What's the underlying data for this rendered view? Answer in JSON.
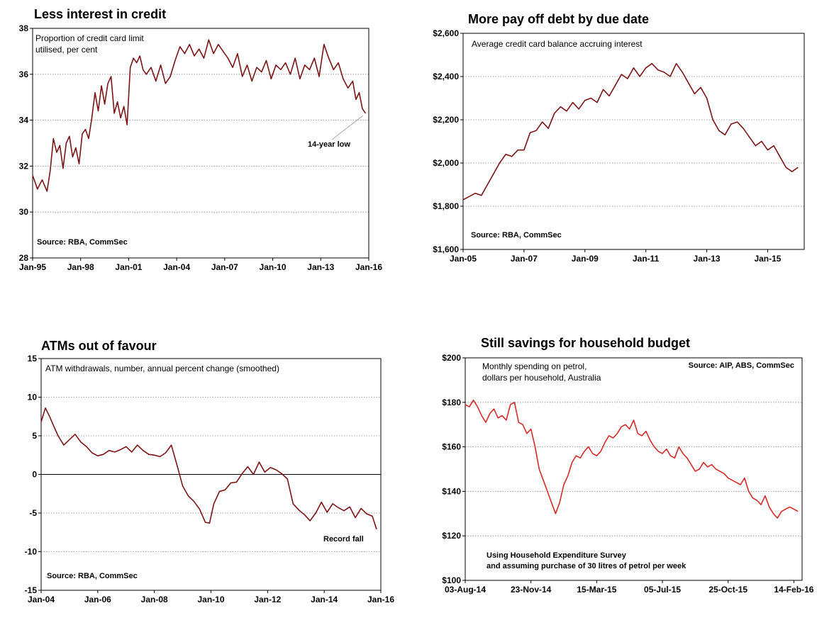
{
  "chart_data": [
    {
      "type": "line",
      "title": "Less interest in credit",
      "note_lines": [
        "Proportion of credit card limit",
        "utilised, per cent"
      ],
      "source": "Source: RBA, CommSec",
      "annotation": "14-year low",
      "ylim": [
        28,
        38
      ],
      "y_ticks": [
        28,
        30,
        32,
        34,
        36,
        38
      ],
      "y_tick_labels": [
        "28",
        "30",
        "32",
        "34",
        "36",
        "38"
      ],
      "xlim": [
        1995.0,
        2016.0
      ],
      "x_ticks": [
        1995,
        1998,
        2001,
        2004,
        2007,
        2010,
        2013,
        2016
      ],
      "x_tick_labels": [
        "Jan-95",
        "Jan-98",
        "Jan-01",
        "Jan-04",
        "Jan-07",
        "Jan-10",
        "Jan-13",
        "Jan-16"
      ],
      "grid": true,
      "color": "#7b1416",
      "series": [
        {
          "x": [
            1995.0,
            1995.3,
            1995.6,
            1995.9,
            1996.1,
            1996.3,
            1996.5,
            1996.7,
            1996.9,
            1997.1,
            1997.3,
            1997.5,
            1997.7,
            1997.9,
            1998.1,
            1998.3,
            1998.5,
            1998.7,
            1998.9,
            1999.1,
            1999.3,
            1999.5,
            1999.7,
            1999.9,
            2000.1,
            2000.3,
            2000.5,
            2000.7,
            2000.9,
            2001.1,
            2001.3,
            2001.5,
            2001.7,
            2001.9,
            2002.1,
            2002.4,
            2002.7,
            2003.0,
            2003.3,
            2003.6,
            2003.9,
            2004.2,
            2004.5,
            2004.8,
            2005.1,
            2005.4,
            2005.7,
            2006.0,
            2006.3,
            2006.6,
            2006.9,
            2007.2,
            2007.5,
            2007.8,
            2008.1,
            2008.4,
            2008.7,
            2009.0,
            2009.3,
            2009.6,
            2009.9,
            2010.2,
            2010.5,
            2010.8,
            2011.1,
            2011.4,
            2011.7,
            2012.0,
            2012.3,
            2012.6,
            2012.9,
            2013.2,
            2013.5,
            2013.8,
            2014.1,
            2014.4,
            2014.7,
            2015.0,
            2015.2,
            2015.4,
            2015.6,
            2015.8
          ],
          "y": [
            31.6,
            31.0,
            31.4,
            30.9,
            31.8,
            33.2,
            32.6,
            32.9,
            31.9,
            33.0,
            33.3,
            32.4,
            32.8,
            32.1,
            33.4,
            33.6,
            33.2,
            34.1,
            35.2,
            34.4,
            35.5,
            34.7,
            35.6,
            35.9,
            34.3,
            34.8,
            34.1,
            34.6,
            33.8,
            36.3,
            36.7,
            36.5,
            36.8,
            36.2,
            36.0,
            36.3,
            35.7,
            36.4,
            35.6,
            35.9,
            36.6,
            37.2,
            36.9,
            37.3,
            36.8,
            37.1,
            36.7,
            37.5,
            36.9,
            37.3,
            37.0,
            36.7,
            36.3,
            36.9,
            35.9,
            36.4,
            35.7,
            36.3,
            36.1,
            36.6,
            35.8,
            36.4,
            36.2,
            36.5,
            36.0,
            36.7,
            35.8,
            36.4,
            36.2,
            36.7,
            35.9,
            37.3,
            36.7,
            36.2,
            36.5,
            35.8,
            35.4,
            35.7,
            34.9,
            35.2,
            34.5,
            34.3
          ]
        }
      ]
    },
    {
      "type": "line",
      "title": "More pay off debt by due date",
      "note_lines": [
        "Average credit card balance accruing interest"
      ],
      "source": "Source: RBA, CommSec",
      "ylim": [
        1600,
        2600
      ],
      "y_ticks": [
        1600,
        1800,
        2000,
        2200,
        2400,
        2600
      ],
      "y_tick_labels": [
        "$1,600",
        "$1,800",
        "$2,000",
        "$2,200",
        "$2,400",
        "$2,600"
      ],
      "xlim": [
        2005.0,
        2016.2
      ],
      "x_ticks": [
        2005,
        2007,
        2009,
        2011,
        2013,
        2015
      ],
      "x_tick_labels": [
        "Jan-05",
        "Jan-07",
        "Jan-09",
        "Jan-11",
        "Jan-13",
        "Jan-15"
      ],
      "grid": true,
      "color": "#7b1416",
      "series": [
        {
          "x": [
            2005.0,
            2005.2,
            2005.4,
            2005.6,
            2005.8,
            2006.0,
            2006.2,
            2006.4,
            2006.6,
            2006.8,
            2007.0,
            2007.2,
            2007.4,
            2007.6,
            2007.8,
            2008.0,
            2008.2,
            2008.4,
            2008.6,
            2008.8,
            2009.0,
            2009.2,
            2009.4,
            2009.6,
            2009.8,
            2010.0,
            2010.2,
            2010.4,
            2010.6,
            2010.8,
            2011.0,
            2011.2,
            2011.4,
            2011.6,
            2011.8,
            2012.0,
            2012.2,
            2012.4,
            2012.6,
            2012.8,
            2013.0,
            2013.2,
            2013.4,
            2013.6,
            2013.8,
            2014.0,
            2014.2,
            2014.4,
            2014.6,
            2014.8,
            2015.0,
            2015.2,
            2015.4,
            2015.6,
            2015.8,
            2016.0
          ],
          "y": [
            1830,
            1845,
            1860,
            1850,
            1900,
            1950,
            2000,
            2040,
            2030,
            2060,
            2060,
            2140,
            2150,
            2190,
            2160,
            2230,
            2260,
            2240,
            2280,
            2250,
            2290,
            2300,
            2280,
            2340,
            2310,
            2360,
            2410,
            2390,
            2440,
            2400,
            2440,
            2460,
            2430,
            2420,
            2400,
            2460,
            2420,
            2370,
            2320,
            2350,
            2300,
            2200,
            2150,
            2130,
            2180,
            2190,
            2160,
            2120,
            2080,
            2100,
            2060,
            2080,
            2030,
            1980,
            1960,
            1980
          ]
        }
      ]
    },
    {
      "type": "line",
      "title": "ATMs out of favour",
      "note_lines": [
        "ATM withdrawals, number, annual percent change (smoothed)"
      ],
      "source": "Source: RBA, CommSec",
      "annotation": "Record fall",
      "ylim": [
        -15,
        15
      ],
      "y_ticks": [
        -15,
        -10,
        -5,
        0,
        5,
        10,
        15
      ],
      "y_tick_labels": [
        "-15",
        "-10",
        "-5",
        "0",
        "5",
        "10",
        "15"
      ],
      "xlim": [
        2004.0,
        2016.0
      ],
      "x_ticks": [
        2004,
        2006,
        2008,
        2010,
        2012,
        2014,
        2016
      ],
      "x_tick_labels": [
        "Jan-04",
        "Jan-06",
        "Jan-08",
        "Jan-10",
        "Jan-12",
        "Jan-14",
        "Jan-16"
      ],
      "grid": true,
      "color": "#7b1416",
      "series": [
        {
          "x": [
            2004.0,
            2004.15,
            2004.3,
            2004.45,
            2004.6,
            2004.8,
            2005.0,
            2005.2,
            2005.4,
            2005.6,
            2005.8,
            2006.0,
            2006.2,
            2006.4,
            2006.6,
            2006.8,
            2007.0,
            2007.2,
            2007.4,
            2007.6,
            2007.8,
            2008.0,
            2008.2,
            2008.4,
            2008.6,
            2008.8,
            2009.0,
            2009.2,
            2009.4,
            2009.6,
            2009.8,
            2009.95,
            2010.1,
            2010.3,
            2010.5,
            2010.7,
            2010.9,
            2011.1,
            2011.3,
            2011.5,
            2011.7,
            2011.9,
            2012.1,
            2012.3,
            2012.5,
            2012.7,
            2012.9,
            2013.1,
            2013.3,
            2013.5,
            2013.7,
            2013.9,
            2014.1,
            2014.3,
            2014.5,
            2014.7,
            2014.9,
            2015.1,
            2015.3,
            2015.5,
            2015.7,
            2015.85
          ],
          "y": [
            6.8,
            8.6,
            7.5,
            6.2,
            5.0,
            3.8,
            4.5,
            5.2,
            4.2,
            3.6,
            2.8,
            2.4,
            2.6,
            3.1,
            2.9,
            3.2,
            3.6,
            2.9,
            3.8,
            3.1,
            2.6,
            2.5,
            2.3,
            2.8,
            3.8,
            1.2,
            -1.5,
            -2.8,
            -3.5,
            -4.5,
            -6.2,
            -6.3,
            -3.8,
            -2.2,
            -2.0,
            -1.1,
            -1.0,
            0.1,
            1.0,
            0.0,
            1.6,
            0.3,
            0.9,
            0.6,
            0.1,
            -0.6,
            -3.8,
            -4.6,
            -5.2,
            -6.0,
            -5.0,
            -3.6,
            -4.9,
            -3.8,
            -4.3,
            -4.7,
            -4.2,
            -5.6,
            -4.4,
            -5.1,
            -5.4,
            -7.1
          ]
        }
      ]
    },
    {
      "type": "line",
      "title": "Still savings for household budget",
      "note_lines": [
        "Monthly spending on petrol,",
        "dollars per household, Australia"
      ],
      "source": "Source: AIP, ABS, CommSec",
      "footnote_lines": [
        "Using Household Expenditure Survey",
        "and assuming purchase of 30 litres of petrol per week"
      ],
      "ylim": [
        100,
        200
      ],
      "y_ticks": [
        100,
        120,
        140,
        160,
        180,
        200
      ],
      "y_tick_labels": [
        "$100",
        "$120",
        "$140",
        "$160",
        "$180",
        "$200"
      ],
      "xlim": [
        0,
        574
      ],
      "x_ticks": [
        0,
        112,
        224,
        336,
        448,
        560
      ],
      "x_tick_labels": [
        "03-Aug-14",
        "23-Nov-14",
        "15-Mar-15",
        "05-Jul-15",
        "25-Oct-15",
        "14-Feb-16"
      ],
      "grid": true,
      "color": "#d42a2a",
      "series": [
        {
          "x": [
            0,
            7,
            14,
            21,
            28,
            35,
            42,
            49,
            56,
            63,
            70,
            77,
            84,
            91,
            98,
            105,
            112,
            119,
            126,
            133,
            140,
            147,
            154,
            161,
            168,
            175,
            182,
            189,
            196,
            203,
            210,
            217,
            224,
            231,
            238,
            245,
            252,
            259,
            266,
            273,
            280,
            287,
            294,
            301,
            308,
            315,
            322,
            329,
            336,
            343,
            350,
            357,
            364,
            371,
            378,
            385,
            392,
            399,
            406,
            413,
            420,
            427,
            434,
            441,
            448,
            455,
            462,
            469,
            476,
            483,
            490,
            497,
            504,
            511,
            518,
            525,
            532,
            539,
            546,
            553,
            560,
            567
          ],
          "y": [
            179,
            178,
            181,
            178,
            174,
            171,
            175,
            177,
            173,
            174,
            172,
            179,
            180,
            171,
            170,
            166,
            168,
            160,
            150,
            145,
            140,
            135,
            130,
            135,
            143,
            147,
            153,
            156,
            155,
            158,
            160,
            157,
            156,
            158,
            162,
            165,
            164,
            166,
            169,
            170,
            168,
            172,
            166,
            165,
            167,
            163,
            160,
            158,
            157,
            159,
            156,
            155,
            160,
            157,
            155,
            152,
            149,
            150,
            153,
            151,
            152,
            150,
            149,
            148,
            146,
            145,
            144,
            143,
            146,
            140,
            137,
            136,
            134,
            138,
            133,
            130,
            128,
            131,
            132,
            133,
            132,
            131
          ]
        }
      ]
    }
  ]
}
